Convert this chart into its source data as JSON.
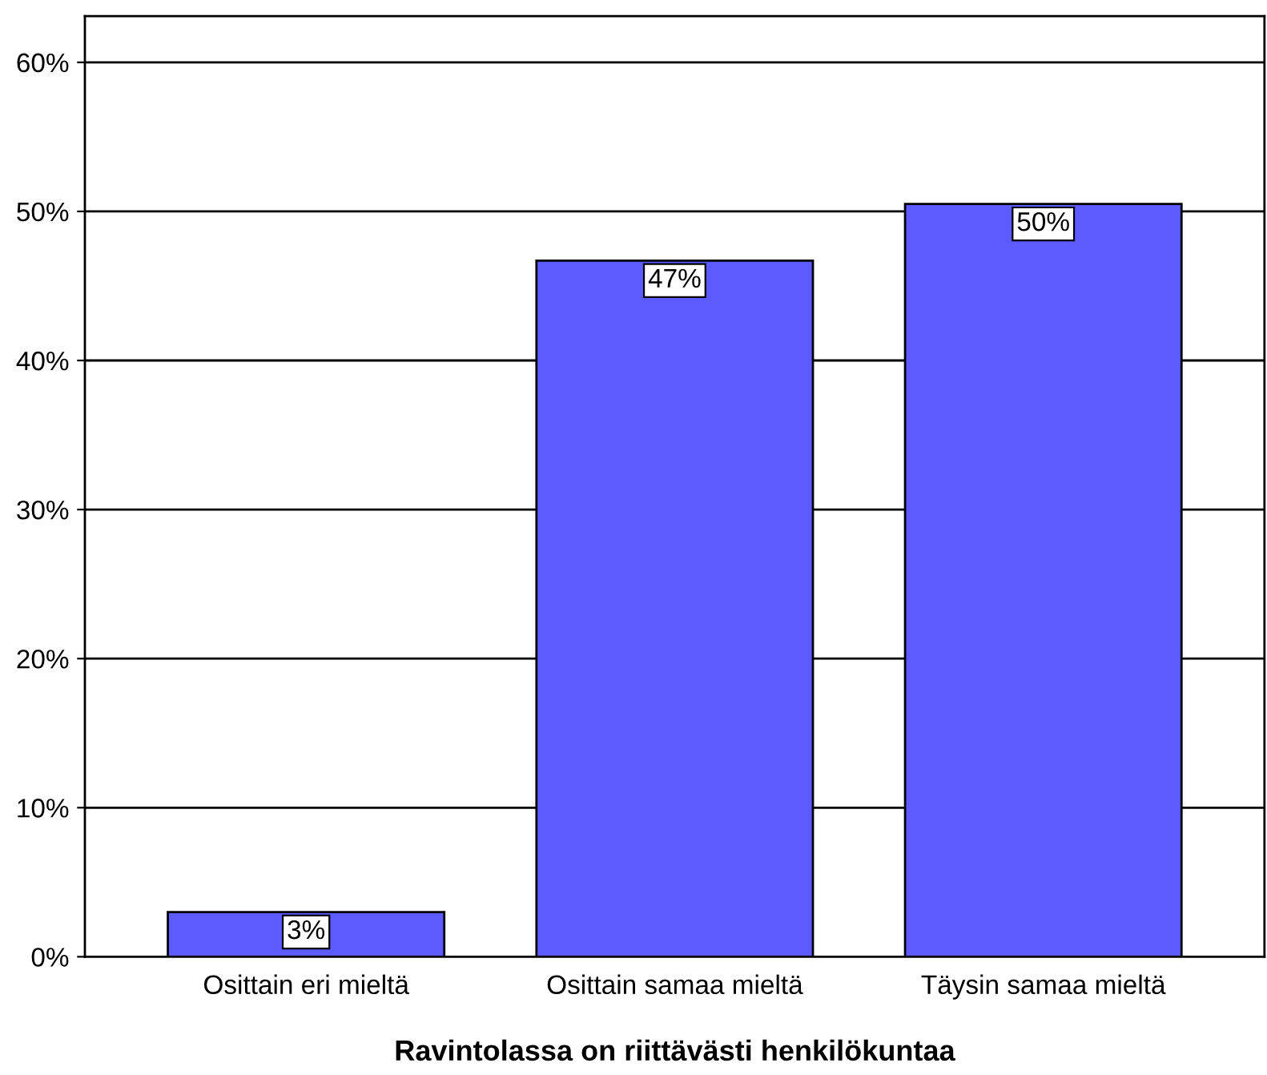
{
  "chart_data": {
    "type": "bar",
    "xlabel": "Ravintolassa on riittävästi henkilökuntaa",
    "categories": [
      "Osittain eri mieltä",
      "Osittain samaa mieltä",
      "Täysin samaa mieltä"
    ],
    "values": [
      3.0,
      46.7,
      50.5
    ],
    "value_labels": [
      "3%",
      "47%",
      "50%"
    ],
    "color": "#5b5bff",
    "ylim": [
      0,
      63.1
    ],
    "yticks": [
      {
        "value": 0,
        "label": "0%"
      },
      {
        "value": 10,
        "label": "10%"
      },
      {
        "value": 20,
        "label": "20%"
      },
      {
        "value": 30,
        "label": "30%"
      },
      {
        "value": 40,
        "label": "40%"
      },
      {
        "value": 50,
        "label": "50%"
      },
      {
        "value": 60,
        "label": "60%"
      }
    ],
    "grid": "y"
  }
}
